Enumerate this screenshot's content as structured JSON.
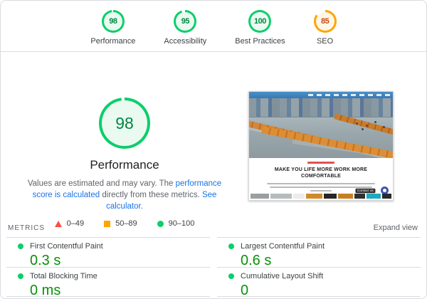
{
  "scores": {
    "items": [
      {
        "label": "Performance",
        "score": "98",
        "pct": 98,
        "status": "green"
      },
      {
        "label": "Accessibility",
        "score": "95",
        "pct": 95,
        "status": "green"
      },
      {
        "label": "Best Practices",
        "score": "100",
        "pct": 100,
        "status": "green"
      },
      {
        "label": "SEO",
        "score": "85",
        "pct": 85,
        "status": "orange"
      }
    ]
  },
  "gauge": {
    "score": "98",
    "pct": 98,
    "status": "green",
    "label": "Performance"
  },
  "description": {
    "text1": "Values are estimated and may vary. The ",
    "link1": "performance score is calculated",
    "text2": " directly from these metrics. ",
    "link2": "See calculator."
  },
  "legend": {
    "fail": {
      "label": "0–49"
    },
    "average": {
      "label": "50–89"
    },
    "pass": {
      "label": "90–100"
    }
  },
  "metrics": {
    "header": "METRICS",
    "expand_label": "Expand view",
    "items": [
      {
        "name": "First Contentful Paint",
        "value": "0.3 s"
      },
      {
        "name": "Largest Contentful Paint",
        "value": "0.6 s"
      },
      {
        "name": "Total Blocking Time",
        "value": "0 ms"
      },
      {
        "name": "Cumulative Layout Shift",
        "value": "0"
      }
    ]
  },
  "thumbnail": {
    "headline_line1": "MAKE YOU LIFE MORE WORK MORE",
    "headline_line2": "COMFORTABLE",
    "contact_label": "Contact us"
  },
  "colors": {
    "pass": "#0cce6b",
    "average": "#ffa400",
    "fail": "#ff4e42",
    "pass_text": "#018642",
    "average_text": "#c44a16",
    "pass_fill": "#eafaf1",
    "average_fill": "#fff7e6",
    "link": "#1a73e8",
    "value_green": "#0a9008"
  }
}
